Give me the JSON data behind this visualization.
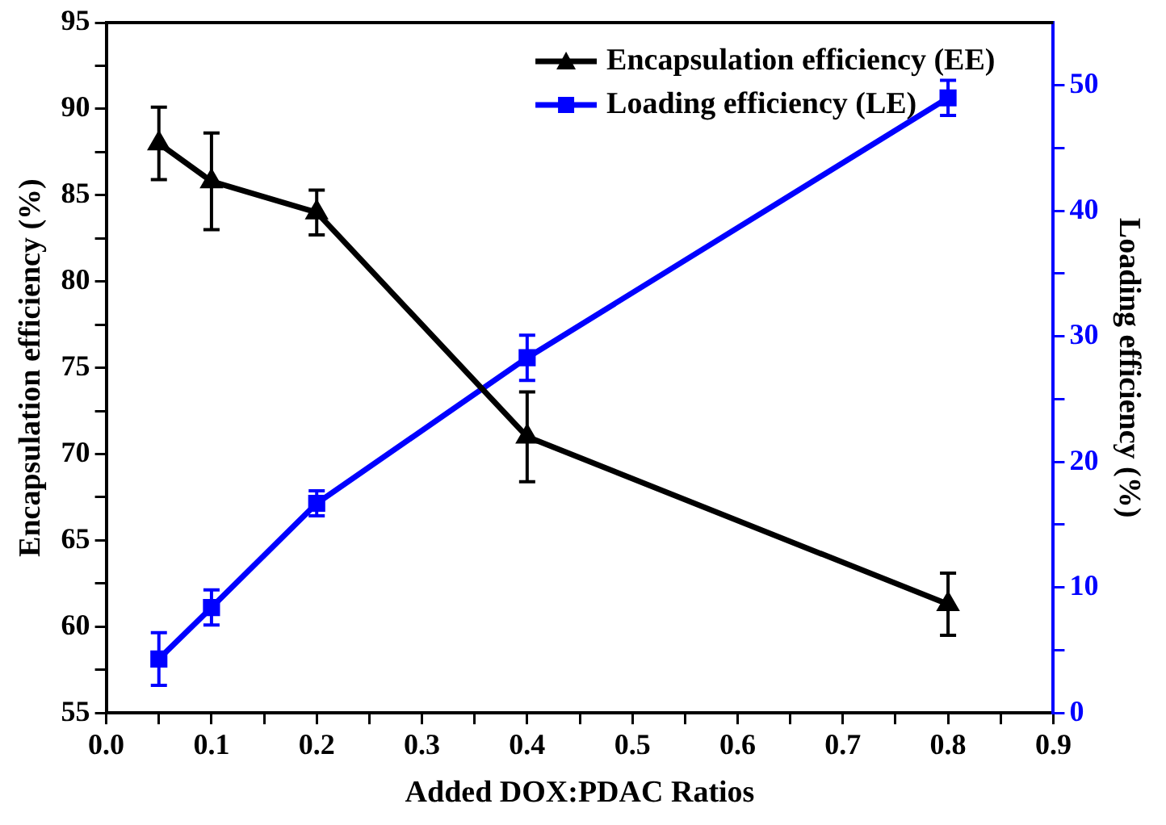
{
  "chart_data": {
    "type": "line",
    "xlabel": "Added DOX:PDAC Ratios",
    "ylabel": "Encapsulation efficiency (%)",
    "y2label": "Loading efficiency (%)",
    "x": [
      0.05,
      0.1,
      0.2,
      0.4,
      0.8
    ],
    "series": [
      {
        "name": "Encapsulation efficiency (EE)",
        "color": "#000000",
        "marker": "triangle",
        "values": [
          88,
          85.8,
          84,
          71,
          61.3
        ],
        "errors": [
          2.1,
          2.8,
          1.3,
          2.6,
          1.8
        ]
      },
      {
        "name": "Loading efficiency (LE)",
        "color": "#0000ff",
        "marker": "square",
        "axis": "y2",
        "values": [
          4.3,
          8.4,
          16.7,
          28.3,
          49
        ],
        "errors": [
          2.1,
          1.4,
          1,
          1.8,
          1.4
        ]
      }
    ],
    "xlim": [
      0,
      0.9
    ],
    "xticks": [
      {
        "value": 0,
        "label": "0.0"
      },
      {
        "value": 0.05,
        "label": null
      },
      {
        "value": 0.1,
        "label": "0.1"
      },
      {
        "value": 0.15,
        "label": null
      },
      {
        "value": 0.2,
        "label": "0.2"
      },
      {
        "value": 0.25,
        "label": null
      },
      {
        "value": 0.3,
        "label": "0.3"
      },
      {
        "value": 0.35,
        "label": null
      },
      {
        "value": 0.4,
        "label": "0.4"
      },
      {
        "value": 0.45,
        "label": null
      },
      {
        "value": 0.5,
        "label": "0.5"
      },
      {
        "value": 0.55,
        "label": null
      },
      {
        "value": 0.6,
        "label": "0.6"
      },
      {
        "value": 0.65,
        "label": null
      },
      {
        "value": 0.7,
        "label": "0.7"
      },
      {
        "value": 0.75,
        "label": null
      },
      {
        "value": 0.8,
        "label": "0.8"
      },
      {
        "value": 0.85,
        "label": null
      },
      {
        "value": 0.9,
        "label": "0.9"
      }
    ],
    "ylim": [
      55,
      95
    ],
    "yticks": [
      55,
      {
        "value": 57.5,
        "label": null
      },
      60,
      {
        "value": 62.5,
        "label": null
      },
      65,
      {
        "value": 67.5,
        "label": null
      },
      70,
      {
        "value": 72.5,
        "label": null
      },
      75,
      {
        "value": 77.5,
        "label": null
      },
      80,
      {
        "value": 82.5,
        "label": null
      },
      85,
      {
        "value": 87.5,
        "label": null
      },
      90,
      {
        "value": 92.5,
        "label": null
      },
      95
    ],
    "y2lim": [
      0,
      55
    ],
    "y2ticks": [
      0,
      {
        "value": 5,
        "label": null
      },
      10,
      {
        "value": 15,
        "label": null
      },
      20,
      {
        "value": 25,
        "label": null
      },
      30,
      {
        "value": 35,
        "label": null
      },
      40,
      {
        "value": 45,
        "label": null
      },
      50
    ],
    "legend": "top right",
    "line_style": "solid"
  }
}
